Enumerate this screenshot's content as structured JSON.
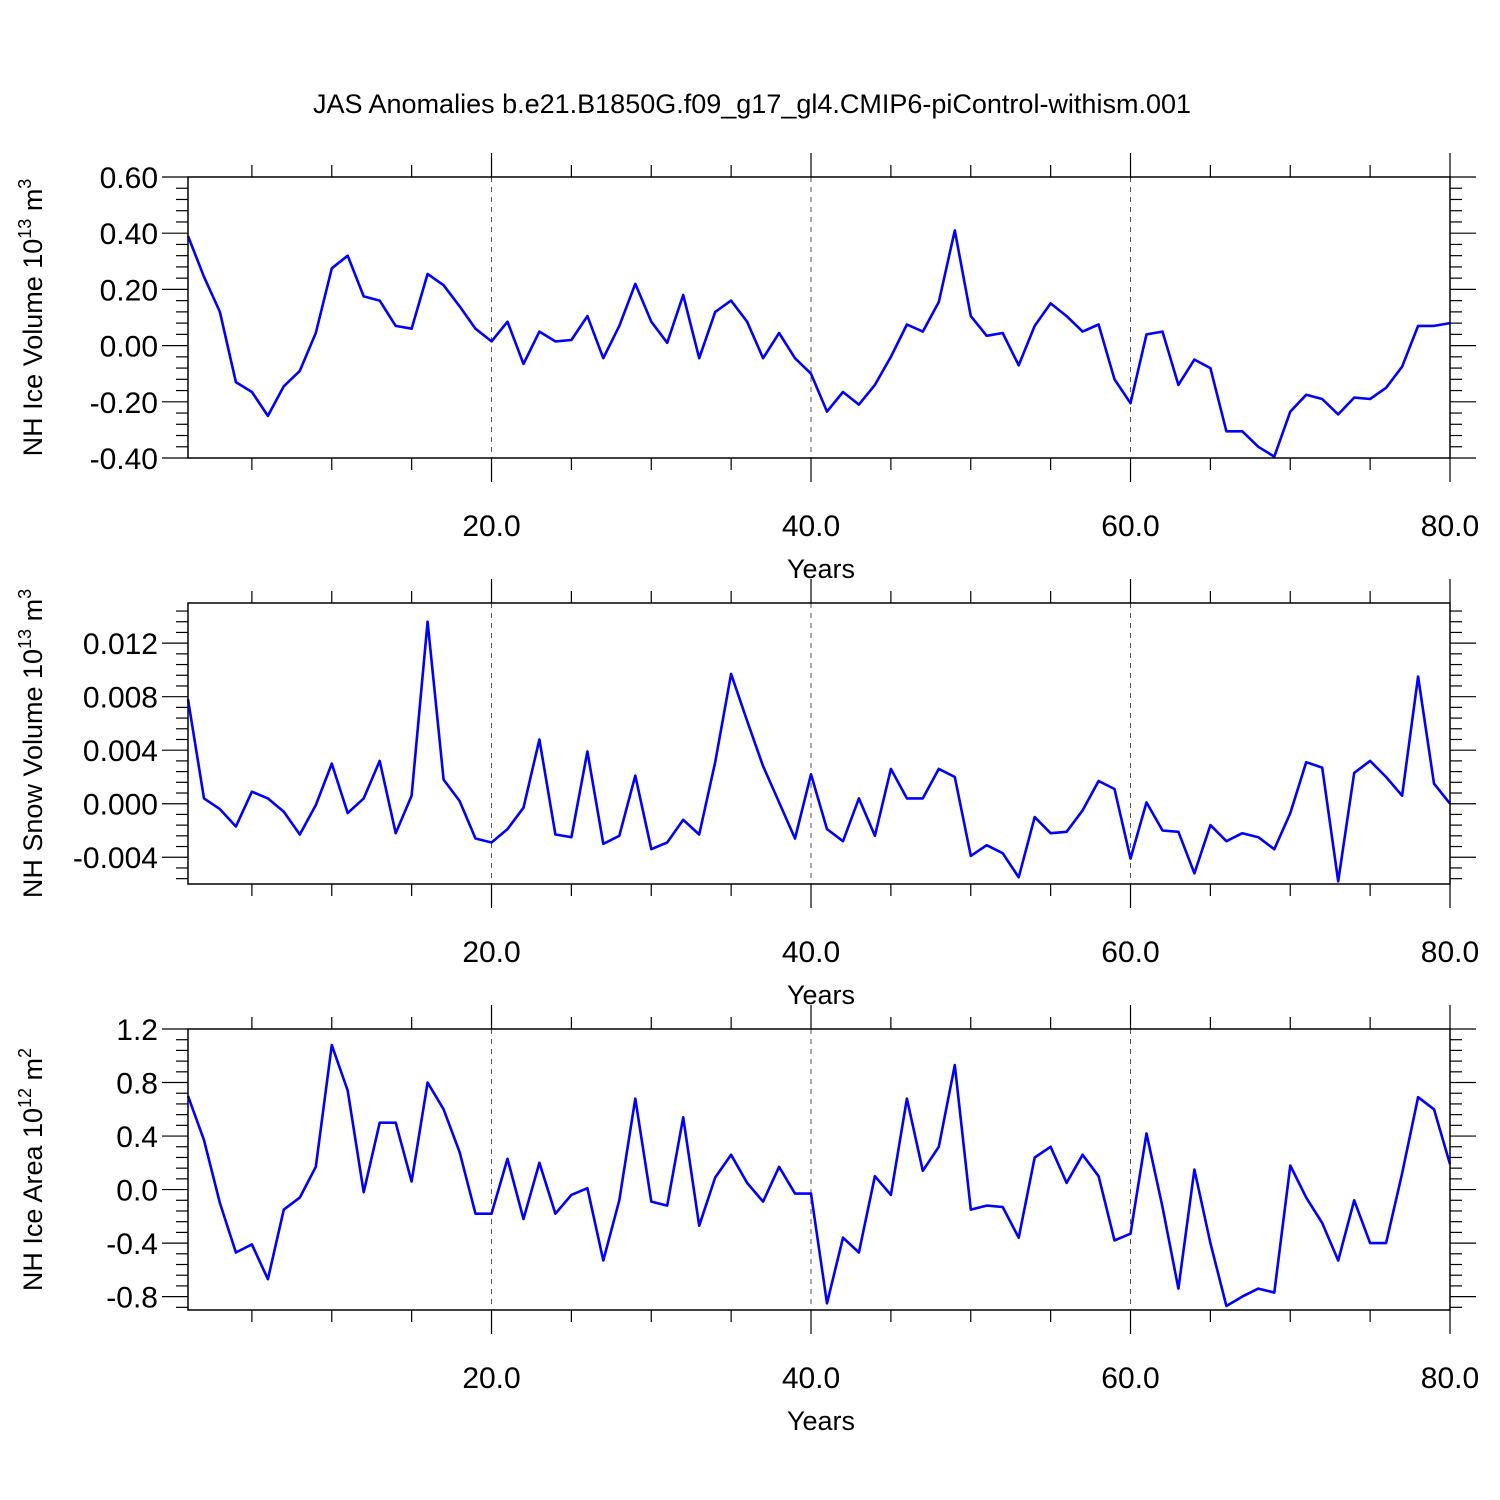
{
  "figure": {
    "title": "JAS Anomalies b.e21.B1850G.f09_g17_gl4.CMIP6-piControl-withism.001"
  },
  "chart_data": [
    {
      "type": "line",
      "xlabel": "Years",
      "ylabel": "NH Ice Volume 10",
      "ylabel_sup": "13",
      "ylabel_unit": " m",
      "ylabel_unit_sup": "3",
      "xlim": [
        1,
        80
      ],
      "ylim": [
        -0.4,
        0.6
      ],
      "xticks": [
        20,
        40,
        60,
        80
      ],
      "xtick_labels": [
        "20.0",
        "40.0",
        "60.0",
        "80.0"
      ],
      "yticks": [
        -0.4,
        -0.2,
        0.0,
        0.2,
        0.4,
        0.6
      ],
      "ytick_labels": [
        "-0.40",
        "-0.20",
        "0.00",
        "0.20",
        "0.40",
        "0.60"
      ],
      "grid": "vertical dashed at major x ticks",
      "color": "#0000ff",
      "series": [
        {
          "x_start": 1,
          "values": [
            0.39,
            0.245,
            0.12,
            -0.13,
            -0.165,
            -0.25,
            -0.145,
            -0.09,
            0.045,
            0.275,
            0.32,
            0.175,
            0.16,
            0.07,
            0.06,
            0.255,
            0.215,
            0.14,
            0.06,
            0.015,
            0.085,
            -0.065,
            0.05,
            0.015,
            0.02,
            0.105,
            -0.045,
            0.07,
            0.22,
            0.085,
            0.01,
            0.18,
            -0.045,
            0.12,
            0.16,
            0.085,
            -0.045,
            0.045,
            -0.045,
            -0.1,
            -0.235,
            -0.165,
            -0.21,
            -0.14,
            -0.04,
            0.075,
            0.05,
            0.155,
            0.41,
            0.105,
            0.035,
            0.045,
            -0.07,
            0.07,
            0.15,
            0.105,
            0.05,
            0.075,
            -0.12,
            -0.205,
            0.04,
            0.05,
            -0.14,
            -0.05,
            -0.08,
            -0.305,
            -0.305,
            -0.36,
            -0.395,
            -0.235,
            -0.175,
            -0.19,
            -0.245,
            -0.185,
            -0.19,
            -0.15,
            -0.075,
            0.07,
            0.07,
            0.08
          ]
        }
      ]
    },
    {
      "type": "line",
      "xlabel": "Years",
      "ylabel": "NH Snow Volume 10",
      "ylabel_sup": "13",
      "ylabel_unit": " m",
      "ylabel_unit_sup": "3",
      "xlim": [
        1,
        80
      ],
      "ylim": [
        -0.006,
        0.015
      ],
      "xticks": [
        20,
        40,
        60,
        80
      ],
      "xtick_labels": [
        "20.0",
        "40.0",
        "60.0",
        "80.0"
      ],
      "yticks": [
        -0.004,
        0.0,
        0.004,
        0.008,
        0.012
      ],
      "ytick_labels": [
        "-0.004",
        "0.000",
        "0.004",
        "0.008",
        "0.012"
      ],
      "grid": "vertical dashed at major x ticks",
      "color": "#0000ff",
      "series": [
        {
          "x_start": 1,
          "values": [
            0.0078,
            0.0004,
            -0.0004,
            -0.0017,
            0.0009,
            0.0004,
            -0.0006,
            -0.0023,
            -0.0001,
            0.003,
            -0.0007,
            0.0004,
            0.0032,
            -0.0022,
            0.0006,
            0.0136,
            0.0018,
            0.0002,
            -0.0026,
            -0.0029,
            -0.0019,
            -0.0003,
            0.0048,
            -0.0023,
            -0.0025,
            0.0039,
            -0.003,
            -0.0024,
            0.0021,
            -0.0034,
            -0.0029,
            -0.0012,
            -0.0023,
            0.0031,
            0.0097,
            0.0062,
            0.0028,
            0.0001,
            -0.0026,
            0.0022,
            -0.0019,
            -0.0028,
            0.0004,
            -0.0024,
            0.0026,
            0.0004,
            0.0004,
            0.0026,
            0.002,
            -0.0039,
            -0.0031,
            -0.0037,
            -0.0055,
            -0.001,
            -0.0022,
            -0.0021,
            -0.0005,
            0.0017,
            0.0011,
            -0.0041,
            0.0001,
            -0.002,
            -0.0021,
            -0.0052,
            -0.0016,
            -0.0028,
            -0.0022,
            -0.0025,
            -0.0034,
            -0.0007,
            0.0031,
            0.0027,
            -0.0058,
            0.0023,
            0.0032,
            0.002,
            0.0006,
            0.0095,
            0.0015,
            0.0
          ]
        }
      ]
    },
    {
      "type": "line",
      "xlabel": "Years",
      "ylabel": "NH Ice Area 10",
      "ylabel_sup": "12",
      "ylabel_unit": " m",
      "ylabel_unit_sup": "2",
      "xlim": [
        1,
        80
      ],
      "ylim": [
        -0.9,
        1.2
      ],
      "xticks": [
        20,
        40,
        60,
        80
      ],
      "xtick_labels": [
        "20.0",
        "40.0",
        "60.0",
        "80.0"
      ],
      "yticks": [
        -0.8,
        -0.4,
        0.0,
        0.4,
        0.8,
        1.2
      ],
      "ytick_labels": [
        "-0.8",
        "-0.4",
        "0.0",
        "0.4",
        "0.8",
        "1.2"
      ],
      "grid": "vertical dashed at major x ticks",
      "color": "#0000ff",
      "series": [
        {
          "x_start": 1,
          "values": [
            0.7,
            0.37,
            -0.1,
            -0.47,
            -0.41,
            -0.67,
            -0.15,
            -0.06,
            0.17,
            1.08,
            0.74,
            -0.02,
            0.5,
            0.5,
            0.06,
            0.8,
            0.6,
            0.28,
            -0.18,
            -0.18,
            0.23,
            -0.22,
            0.2,
            -0.18,
            -0.04,
            0.01,
            -0.53,
            -0.08,
            0.68,
            -0.09,
            -0.12,
            0.54,
            -0.27,
            0.09,
            0.26,
            0.05,
            -0.09,
            0.17,
            -0.03,
            -0.03,
            -0.85,
            -0.36,
            -0.47,
            0.1,
            -0.04,
            0.68,
            0.14,
            0.32,
            0.93,
            -0.15,
            -0.12,
            -0.13,
            -0.36,
            0.24,
            0.32,
            0.05,
            0.26,
            0.1,
            -0.38,
            -0.33,
            0.42,
            -0.13,
            -0.74,
            0.15,
            -0.4,
            -0.87,
            -0.8,
            -0.74,
            -0.77,
            0.18,
            -0.06,
            -0.25,
            -0.53,
            -0.08,
            -0.4,
            -0.4,
            0.12,
            0.69,
            0.6,
            0.19
          ]
        }
      ]
    }
  ]
}
